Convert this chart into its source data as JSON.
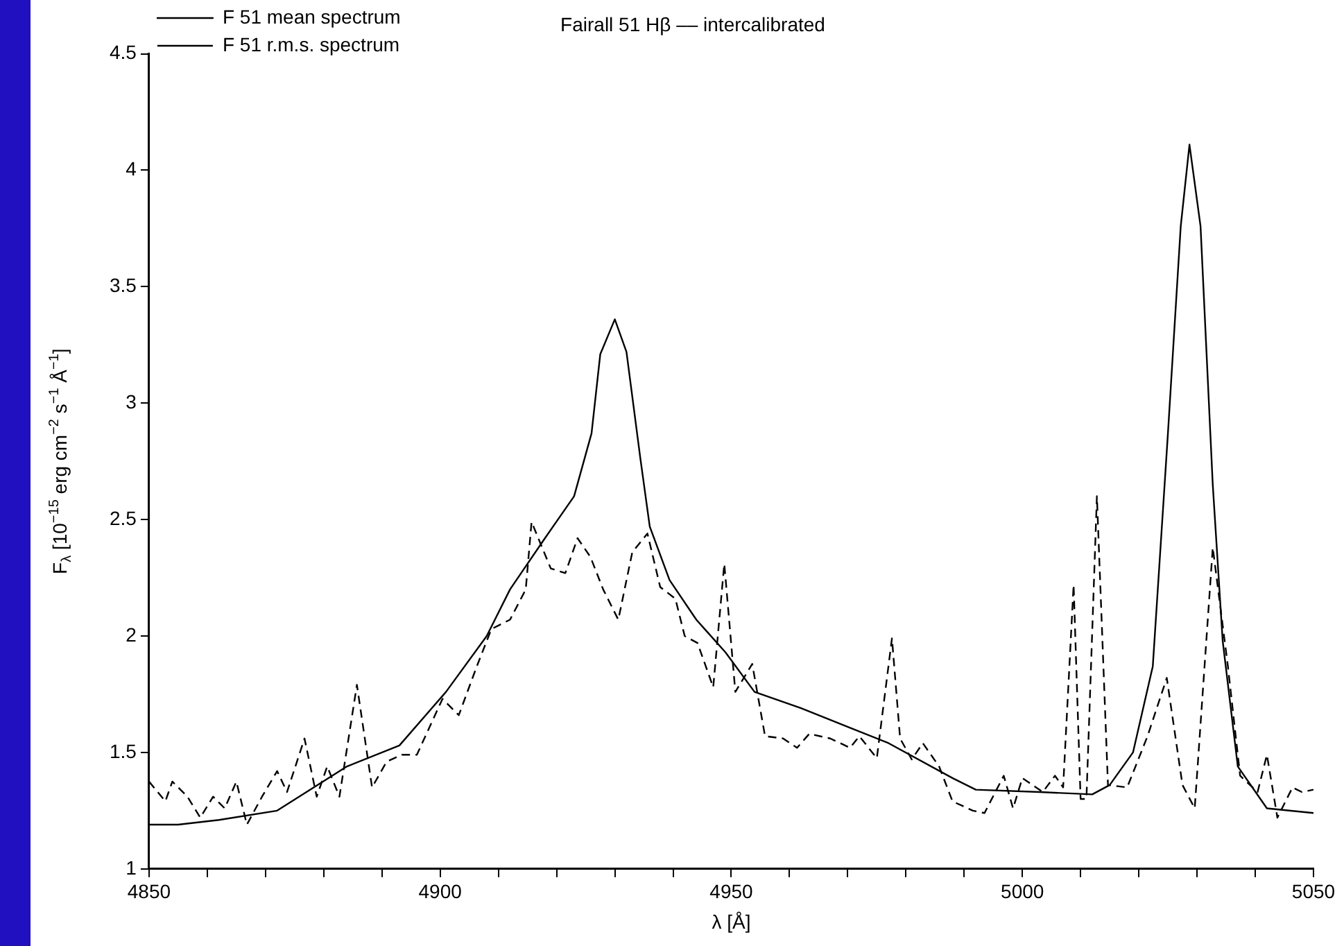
{
  "chart_data": {
    "type": "line",
    "title": "Fairall 51 Hβ –– intercalibrated",
    "xlabel": "λ [Å]",
    "ylabel": "F$_{λ}$ [10$^{−15}$ erg cm$^{−2}$ s$^{−1}$ Å$^{−1}$]",
    "xlim": [
      4850,
      5050
    ],
    "ylim": [
      1,
      4.5
    ],
    "xticks": [
      4850,
      {
        "value": 4860,
        "label": null
      },
      {
        "value": 4870,
        "label": null
      },
      {
        "value": 4880,
        "label": null
      },
      {
        "value": 4890,
        "label": null
      },
      4900,
      {
        "value": 4910,
        "label": null
      },
      {
        "value": 4920,
        "label": null
      },
      {
        "value": 4930,
        "label": null
      },
      {
        "value": 4940,
        "label": null
      },
      4950,
      {
        "value": 4960,
        "label": null
      },
      {
        "value": 4970,
        "label": null
      },
      {
        "value": 4980,
        "label": null
      },
      {
        "value": 4990,
        "label": null
      },
      5000,
      {
        "value": 5010,
        "label": null
      },
      {
        "value": 5020,
        "label": null
      },
      {
        "value": 5030,
        "label": null
      },
      {
        "value": 5040,
        "label": null
      },
      5050
    ],
    "yticks": [
      1,
      1.5,
      2,
      2.5,
      3,
      3.5,
      4,
      4.5
    ],
    "grid": false,
    "legend": "top left",
    "marker": "none",
    "series": [
      {
        "name": "F 51 mean spectrum",
        "color": "#000000",
        "line_style": "solid",
        "x": [
          4850,
          4855,
          4862,
          4872,
          4884,
          4893,
          4901,
          4908,
          4912,
          4918,
          4923,
          4926,
          4927.5,
          4930,
          4932,
          4934.4,
          4936,
          4939.4,
          4944,
          4949,
          4954,
          4962,
          4971,
          4977,
          4988,
          4992,
          5003,
          5012,
          5015,
          5019,
          5022.4,
          5025,
          5027.2,
          5028.7,
          5030.6,
          5032.7,
          5034.4,
          5037,
          5042,
          5050
        ],
        "values": [
          1.19,
          1.19,
          1.21,
          1.25,
          1.44,
          1.53,
          1.76,
          2.0,
          2.2,
          2.42,
          2.6,
          2.87,
          3.21,
          3.36,
          3.22,
          2.76,
          2.47,
          2.24,
          2.07,
          1.93,
          1.76,
          1.69,
          1.6,
          1.54,
          1.39,
          1.34,
          1.33,
          1.32,
          1.36,
          1.5,
          1.87,
          2.87,
          3.76,
          4.11,
          3.76,
          2.65,
          1.98,
          1.44,
          1.26,
          1.24
        ]
      },
      {
        "name": "F 51 r.m.s. spectrum",
        "color": "#000000",
        "line_style": "dashed",
        "x": [
          4850,
          4852.8,
          4854,
          4856.6,
          4858.8,
          4861,
          4863,
          4865,
          4866.8,
          4869.4,
          4872,
          4873.7,
          4876.7,
          4878.8,
          4880.6,
          4882.7,
          4885.7,
          4888.3,
          4890.8,
          4893.4,
          4896,
          4900.4,
          4903.2,
          4906.3,
          4908.8,
          4912,
          4914.7,
          4915.7,
          4919,
          4921.5,
          4923.6,
          4925.8,
          4928,
          4930.6,
          4933,
          4935.6,
          4937.8,
          4940.4,
          4942,
          4944.2,
          4946.9,
          4948.8,
          4950.7,
          4953.6,
          4955.8,
          4958.9,
          4961.3,
          4963.4,
          4967,
          4970.4,
          4972,
          4975,
          4977.6,
          4979,
          4981,
          4982.9,
          4985.7,
          4988,
          4991.5,
          4993.5,
          4996.8,
          4998.4,
          5000,
          5003.5,
          5005.6,
          5007,
          5008.8,
          5010,
          5011,
          5012.8,
          5014.7,
          5018,
          5021.5,
          5024.8,
          5027.5,
          5029.6,
          5032.7,
          5035.3,
          5037.4,
          5040.4,
          5042,
          5043.8,
          5046.4,
          5048,
          5050
        ],
        "values": [
          1.375,
          1.29,
          1.375,
          1.31,
          1.22,
          1.31,
          1.26,
          1.375,
          1.19,
          1.31,
          1.42,
          1.33,
          1.56,
          1.31,
          1.44,
          1.31,
          1.79,
          1.35,
          1.46,
          1.49,
          1.49,
          1.73,
          1.66,
          1.87,
          2.03,
          2.07,
          2.2,
          2.49,
          2.29,
          2.27,
          2.42,
          2.34,
          2.2,
          2.07,
          2.36,
          2.44,
          2.21,
          2.16,
          2.0,
          1.97,
          1.78,
          2.31,
          1.76,
          1.88,
          1.57,
          1.56,
          1.52,
          1.58,
          1.56,
          1.52,
          1.57,
          1.475,
          1.99,
          1.56,
          1.47,
          1.54,
          1.44,
          1.29,
          1.25,
          1.24,
          1.4,
          1.26,
          1.39,
          1.33,
          1.4,
          1.35,
          2.22,
          1.3,
          1.3,
          2.6,
          1.36,
          1.35,
          1.57,
          1.82,
          1.36,
          1.26,
          2.38,
          1.87,
          1.4,
          1.33,
          1.49,
          1.22,
          1.35,
          1.33,
          1.34
        ]
      }
    ]
  }
}
